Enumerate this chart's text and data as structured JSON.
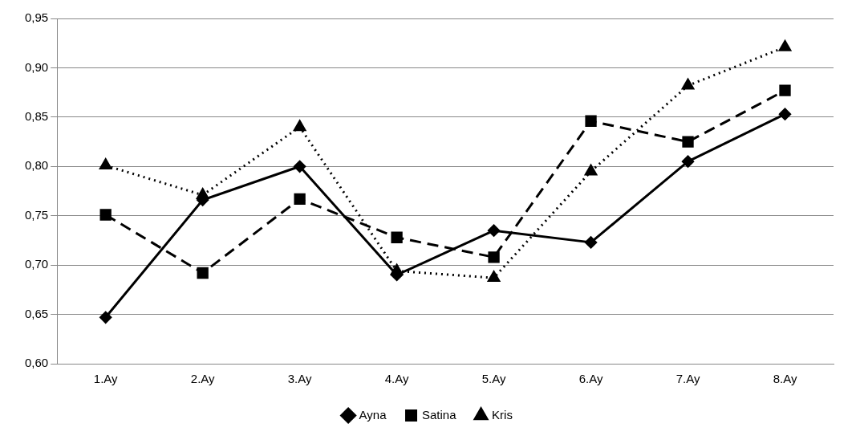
{
  "chart_data": {
    "type": "line",
    "categories": [
      "1.Ay",
      "2.Ay",
      "3.Ay",
      "4.Ay",
      "5.Ay",
      "6.Ay",
      "7.Ay",
      "8.Ay"
    ],
    "series": [
      {
        "name": "Ayna",
        "color": "#000000",
        "marker": "diamond",
        "line_style": "solid",
        "values": [
          0.647,
          0.766,
          0.8,
          0.69,
          0.735,
          0.723,
          0.805,
          0.853
        ]
      },
      {
        "name": "Satina",
        "color": "#000000",
        "marker": "square",
        "line_style": "dashed",
        "values": [
          0.751,
          0.692,
          0.767,
          0.728,
          0.708,
          0.846,
          0.825,
          0.877
        ]
      },
      {
        "name": "Kris",
        "color": "#000000",
        "marker": "triangle",
        "line_style": "dotted",
        "values": [
          0.801,
          0.771,
          0.84,
          0.694,
          0.687,
          0.795,
          0.882,
          0.921
        ]
      }
    ],
    "ylim": [
      0.6,
      0.95
    ],
    "yticks": [
      {
        "value": 0.6,
        "label": "0,60"
      },
      {
        "value": 0.65,
        "label": "0,65"
      },
      {
        "value": 0.7,
        "label": "0,70"
      },
      {
        "value": 0.75,
        "label": "0,75"
      },
      {
        "value": 0.8,
        "label": "0,80"
      },
      {
        "value": 0.85,
        "label": "0,85"
      },
      {
        "value": 0.9,
        "label": "0,90"
      },
      {
        "value": 0.95,
        "label": "0,95"
      }
    ],
    "grid": "y",
    "legend": "bottom"
  }
}
